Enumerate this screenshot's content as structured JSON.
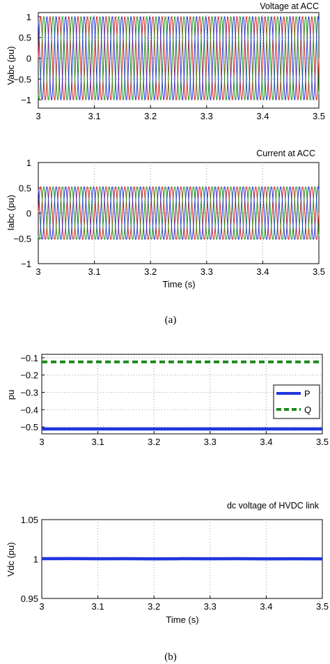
{
  "chart_data": [
    {
      "type": "line",
      "title": "Voltage at ACC",
      "xlabel": "",
      "ylabel": "Vabc (pu)",
      "xlim": [
        3,
        3.5
      ],
      "ylim": [
        -1.2,
        1.1
      ],
      "x_ticks": [
        "3",
        "3.1",
        "3.2",
        "3.3",
        "3.4",
        "3.5"
      ],
      "y_ticks": [
        "1",
        "0.5",
        "0",
        "−0.5",
        "−1"
      ],
      "grid": true,
      "signal": {
        "waveform": "three-phase sinusoid",
        "frequency_hz": 60,
        "amplitude": 1.0
      },
      "series": [
        {
          "phase": "a",
          "color": "#d62020",
          "amplitude": 1.0,
          "phase_deg": 0
        },
        {
          "phase": "b",
          "color": "#1a9a1a",
          "amplitude": 1.0,
          "phase_deg": -120
        },
        {
          "phase": "c",
          "color": "#2030d8",
          "amplitude": 1.0,
          "phase_deg": 120
        }
      ]
    },
    {
      "type": "line",
      "title": "Current at ACC",
      "xlabel": "Time (s)",
      "ylabel": "Iabc (pu)",
      "xlim": [
        3,
        3.5
      ],
      "ylim": [
        -1,
        1
      ],
      "x_ticks": [
        "3",
        "3.1",
        "3.2",
        "3.3",
        "3.4",
        "3.5"
      ],
      "y_ticks": [
        "1",
        "0.5",
        "0",
        "−0.5",
        "−1"
      ],
      "grid": true,
      "signal": {
        "waveform": "three-phase sinusoid",
        "frequency_hz": 60,
        "amplitude": 0.52
      },
      "series": [
        {
          "phase": "a",
          "color": "#d62020",
          "amplitude": 0.52,
          "phase_deg": 0
        },
        {
          "phase": "b",
          "color": "#1a9a1a",
          "amplitude": 0.52,
          "phase_deg": -120
        },
        {
          "phase": "c",
          "color": "#2030d8",
          "amplitude": 0.52,
          "phase_deg": 120
        }
      ]
    },
    {
      "type": "line",
      "title": "",
      "xlabel": "",
      "ylabel": "pu",
      "xlim": [
        3,
        3.5
      ],
      "ylim": [
        -0.54,
        -0.08
      ],
      "x_ticks": [
        "3",
        "3.1",
        "3.2",
        "3.3",
        "3.4",
        "3.5"
      ],
      "y_ticks": [
        "−0.1",
        "−0.2",
        "−0.3",
        "−0.4",
        "−0.5"
      ],
      "grid": true,
      "legend": "right",
      "series": [
        {
          "name": "P",
          "color": "#1f35e0",
          "style": "solid",
          "x": [
            3,
            3.1,
            3.2,
            3.3,
            3.4,
            3.5
          ],
          "values": [
            -0.512,
            -0.512,
            -0.512,
            -0.512,
            -0.512,
            -0.512
          ]
        },
        {
          "name": "Q",
          "color": "#1e8a1e",
          "style": "dashed",
          "x": [
            3,
            3.1,
            3.2,
            3.3,
            3.4,
            3.5
          ],
          "values": [
            -0.124,
            -0.124,
            -0.124,
            -0.124,
            -0.124,
            -0.124
          ]
        }
      ]
    },
    {
      "type": "line",
      "title": "dc voltage of HVDC link",
      "xlabel": "Time (s)",
      "ylabel": "Vdc (pu)",
      "xlim": [
        3,
        3.5
      ],
      "ylim": [
        0.95,
        1.05
      ],
      "x_ticks": [
        "3",
        "3.1",
        "3.2",
        "3.3",
        "3.4",
        "3.5"
      ],
      "y_ticks": [
        "1.05",
        "1",
        "0.95"
      ],
      "grid": true,
      "series": [
        {
          "color": "#1f35e0",
          "x": [
            3,
            3.05,
            3.1,
            3.15,
            3.2,
            3.25,
            3.3,
            3.35,
            3.4,
            3.45,
            3.5
          ],
          "values": [
            1.0004,
            1.0006,
            1.0003,
            1.0005,
            1.0002,
            1.0004,
            1.0003,
            1.0004,
            1.0002,
            1.0003,
            1.0002
          ]
        }
      ]
    }
  ],
  "captions": {
    "a": "(a)",
    "b": "(b)"
  }
}
